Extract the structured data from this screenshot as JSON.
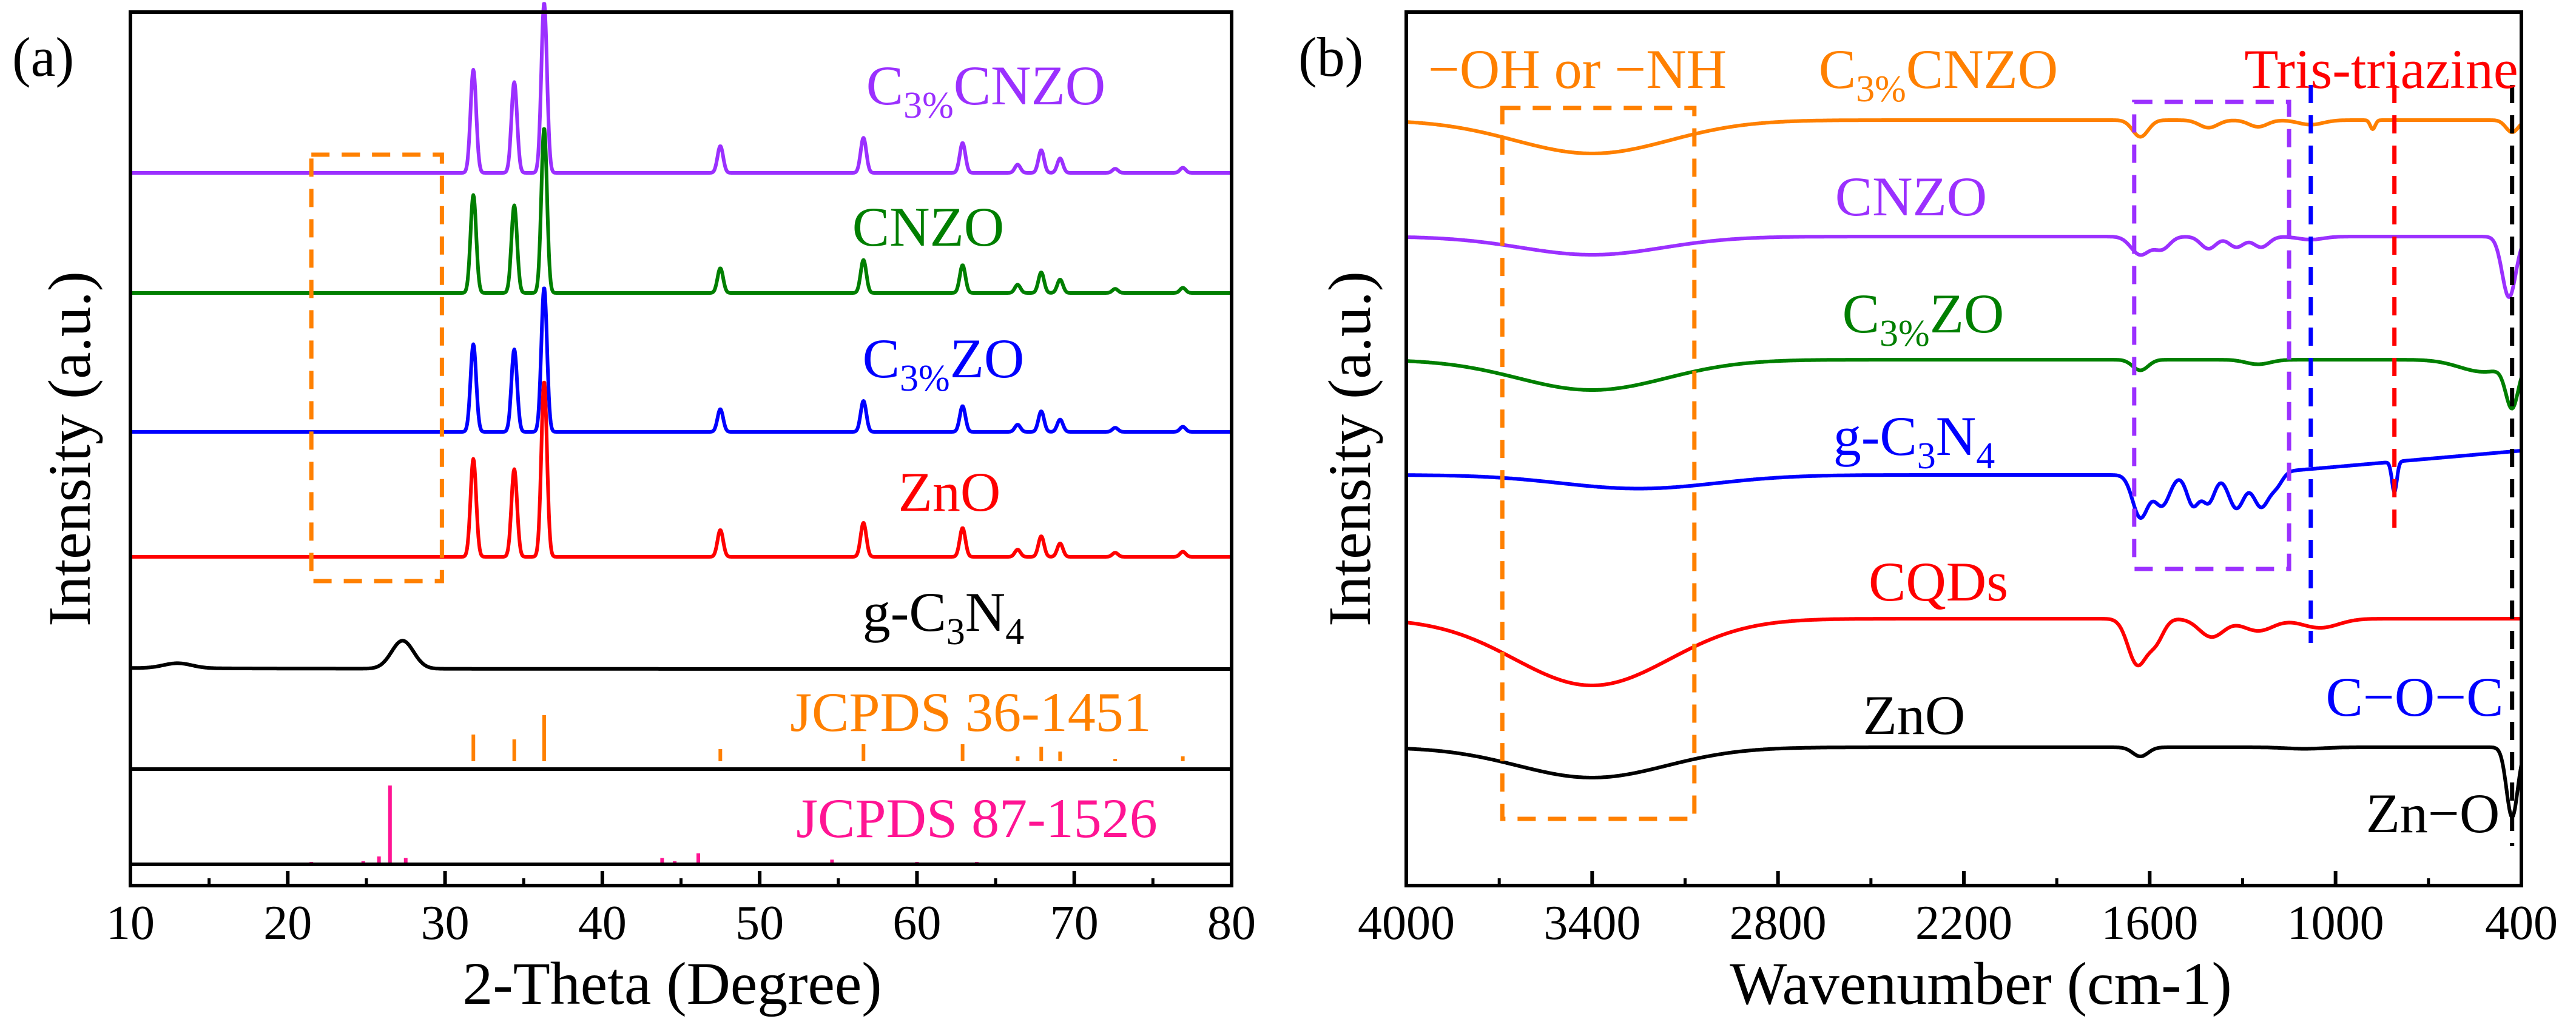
{
  "chart_data": [
    {
      "panel_label": "(a)",
      "type": "line",
      "xlabel": "2-Theta (Degree)",
      "ylabel": "Intensity (a.u.)",
      "xlim": [
        10,
        80
      ],
      "xticks": [
        10,
        20,
        30,
        40,
        50,
        60,
        70,
        80
      ],
      "series": [
        {
          "name": "C3%CNZO",
          "color": "#9b30ff",
          "peaks": [
            [
              31.8,
              1.0
            ],
            [
              34.4,
              0.88
            ],
            [
              36.3,
              1.65
            ],
            [
              47.5,
              0.26
            ],
            [
              56.6,
              0.34
            ],
            [
              62.9,
              0.29
            ],
            [
              66.4,
              0.08
            ],
            [
              67.9,
              0.22
            ],
            [
              69.1,
              0.14
            ],
            [
              72.6,
              0.04
            ],
            [
              76.9,
              0.05
            ]
          ]
        },
        {
          "name": "CNZO",
          "color": "#007f00",
          "peaks": [
            [
              31.8,
              0.95
            ],
            [
              34.4,
              0.85
            ],
            [
              36.3,
              1.6
            ],
            [
              47.5,
              0.24
            ],
            [
              56.6,
              0.32
            ],
            [
              62.9,
              0.27
            ],
            [
              66.4,
              0.08
            ],
            [
              67.9,
              0.2
            ],
            [
              69.1,
              0.13
            ],
            [
              72.6,
              0.04
            ],
            [
              76.9,
              0.05
            ]
          ]
        },
        {
          "name": "C3%ZO",
          "color": "#0000ff",
          "peaks": [
            [
              31.8,
              0.85
            ],
            [
              34.4,
              0.8
            ],
            [
              36.3,
              1.4
            ],
            [
              47.5,
              0.22
            ],
            [
              56.6,
              0.3
            ],
            [
              62.9,
              0.25
            ],
            [
              66.4,
              0.07
            ],
            [
              67.9,
              0.2
            ],
            [
              69.1,
              0.12
            ],
            [
              72.6,
              0.04
            ],
            [
              76.9,
              0.05
            ]
          ]
        },
        {
          "name": "ZnO",
          "color": "#ff0000",
          "peaks": [
            [
              31.8,
              0.95
            ],
            [
              34.4,
              0.85
            ],
            [
              36.3,
              1.7
            ],
            [
              47.5,
              0.26
            ],
            [
              56.6,
              0.33
            ],
            [
              62.9,
              0.28
            ],
            [
              66.4,
              0.07
            ],
            [
              67.9,
              0.2
            ],
            [
              69.1,
              0.13
            ],
            [
              72.6,
              0.04
            ],
            [
              76.9,
              0.05
            ]
          ]
        },
        {
          "name": "g-C3N4",
          "color": "#000000",
          "peaks": [
            [
              13.0,
              0.05
            ],
            [
              27.3,
              0.28
            ]
          ]
        }
      ],
      "references": [
        {
          "name": "JCPDS 36-1451",
          "color": "#ff8000",
          "lines": [
            [
              31.8,
              0.55
            ],
            [
              34.4,
              0.45
            ],
            [
              36.3,
              0.95
            ],
            [
              47.5,
              0.25
            ],
            [
              56.6,
              0.35
            ],
            [
              62.9,
              0.35
            ],
            [
              66.4,
              0.1
            ],
            [
              67.9,
              0.3
            ],
            [
              69.1,
              0.2
            ],
            [
              72.6,
              0.05
            ],
            [
              76.9,
              0.1
            ]
          ]
        },
        {
          "name": "JCPDS 87-1526",
          "color": "#ff1493",
          "lines": [
            [
              21.5,
              0.03
            ],
            [
              24.8,
              0.04
            ],
            [
              25.8,
              0.1
            ],
            [
              26.5,
              1.0
            ],
            [
              27.5,
              0.08
            ],
            [
              33.5,
              0.02
            ],
            [
              43.8,
              0.08
            ],
            [
              44.6,
              0.04
            ],
            [
              46.1,
              0.14
            ],
            [
              50.5,
              0.02
            ],
            [
              54.6,
              0.06
            ],
            [
              55.5,
              0.02
            ],
            [
              60.0,
              0.03
            ],
            [
              62.2,
              0.02
            ],
            [
              63.8,
              0.03
            ],
            [
              64.8,
              0.02
            ],
            [
              71.5,
              0.02
            ]
          ]
        }
      ],
      "annotation": "dashed orange box over 2-Theta 21.5-29.8"
    },
    {
      "panel_label": "(b)",
      "type": "line",
      "xlabel": "Wavenumber (cm-1)",
      "ylabel": "Intensity (a.u.)",
      "xlim": [
        4000,
        400
      ],
      "xticks": [
        4000,
        3400,
        2800,
        2200,
        1600,
        1000,
        400
      ],
      "series": [
        {
          "name": "C3%CNZO",
          "color": "#ff8000",
          "bands": [
            [
              3400,
              1.1,
              250
            ],
            [
              1630,
              0.55,
              25
            ],
            [
              1410,
              0.25,
              30
            ],
            [
              1250,
              0.22,
              30
            ],
            [
              1080,
              0.15,
              40
            ],
            [
              880,
              0.3,
              8
            ],
            [
              430,
              0.4,
              20
            ]
          ]
        },
        {
          "name": "CNZO",
          "color": "#9b30ff",
          "bands": [
            [
              3400,
              0.6,
              230
            ],
            [
              1630,
              0.6,
              30
            ],
            [
              1560,
              0.4,
              25
            ],
            [
              1410,
              0.4,
              25
            ],
            [
              1320,
              0.35,
              25
            ],
            [
              1240,
              0.35,
              25
            ],
            [
              1080,
              0.1,
              40
            ],
            [
              440,
              2.0,
              22
            ]
          ]
        },
        {
          "name": "C3%ZO",
          "color": "#007f00",
          "bands": [
            [
              3400,
              1.0,
              240
            ],
            [
              1630,
              0.35,
              25
            ],
            [
              1250,
              0.15,
              40
            ],
            [
              520,
              0.4,
              80
            ],
            [
              430,
              1.4,
              20
            ]
          ]
        },
        {
          "name": "g-C3N4",
          "color": "#0000ff",
          "bands": [
            [
              3250,
              0.45,
              250
            ],
            [
              1630,
              1.4,
              25
            ],
            [
              1560,
              1.0,
              25
            ],
            [
              1460,
              1.0,
              20
            ],
            [
              1410,
              0.9,
              20
            ],
            [
              1320,
              1.1,
              25
            ],
            [
              1240,
              1.1,
              25
            ],
            [
              1190,
              0.4,
              20
            ],
            [
              810,
              1.0,
              8
            ]
          ]
        },
        {
          "name": "CQDs",
          "color": "#ff0000",
          "bands": [
            [
              3400,
              2.2,
              250
            ],
            [
              1640,
              1.5,
              30
            ],
            [
              1580,
              0.7,
              25
            ],
            [
              1400,
              0.6,
              40
            ],
            [
              1250,
              0.4,
              50
            ],
            [
              1050,
              0.3,
              60
            ]
          ]
        },
        {
          "name": "ZnO",
          "color": "#000000",
          "bands": [
            [
              3400,
              1.0,
              240
            ],
            [
              1630,
              0.3,
              25
            ],
            [
              1100,
              0.05,
              60
            ],
            [
              430,
              2.3,
              18
            ]
          ]
        }
      ],
      "annotations": [
        {
          "text": "−OH or −NH",
          "color": "#ff8000",
          "range": [
            3690,
            3070
          ]
        },
        {
          "text": "",
          "color": "#9b30ff",
          "range": [
            1650,
            1150
          ]
        },
        {
          "text": "C−O−C",
          "color": "#0000ff",
          "at": 1080
        },
        {
          "text": "Tris-triazine",
          "color": "#ff0000",
          "at": 810
        },
        {
          "text": "Zn−O",
          "color": "#000000",
          "at": 430
        }
      ]
    }
  ]
}
